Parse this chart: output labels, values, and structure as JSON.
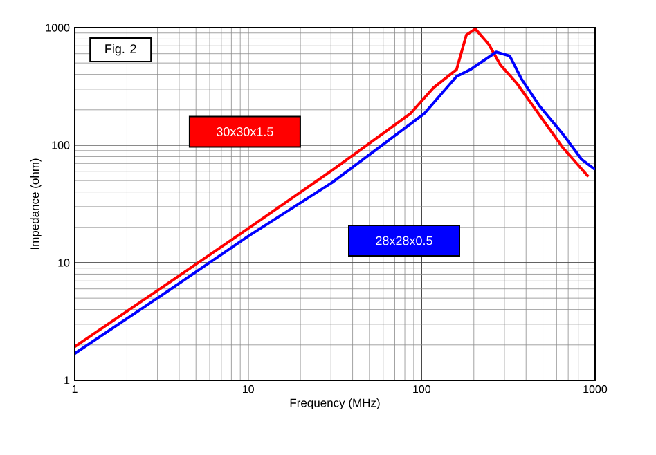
{
  "chart_data": {
    "type": "line",
    "xlabel": "Frequency  (MHz)",
    "ylabel": "Impedance (ohm)",
    "annotations": [
      "Fig. 2"
    ],
    "log": "xy",
    "grid": true,
    "legend": false,
    "marker": "none",
    "line_style": "solid",
    "xlim": [
      1,
      1000
    ],
    "ylim": [
      1,
      1000
    ],
    "xticks": [
      1,
      10,
      100,
      1000
    ],
    "yticks": [
      1,
      10,
      100,
      1000
    ],
    "series": [
      {
        "name": "30x30x1.5",
        "color": "#ff0000",
        "x": [
          1,
          3,
          10,
          30.4,
          86.5,
          117,
          159,
          181,
          204,
          244,
          285,
          354,
          480,
          653,
          915
        ],
        "values": [
          1.93,
          5.8,
          19.6,
          61,
          187,
          308,
          440,
          865,
          975,
          720,
          480,
          336,
          179,
          95,
          54
        ]
      },
      {
        "name": "28x28x0.5",
        "color": "#0000ff",
        "x": [
          1,
          3,
          10,
          30.4,
          104,
          159,
          191,
          269,
          322,
          376,
          480,
          653,
          835,
          1000
        ],
        "values": [
          1.69,
          5.0,
          16.8,
          48,
          187,
          385,
          440,
          620,
          575,
          367,
          214,
          124,
          76,
          62
        ]
      }
    ]
  }
}
